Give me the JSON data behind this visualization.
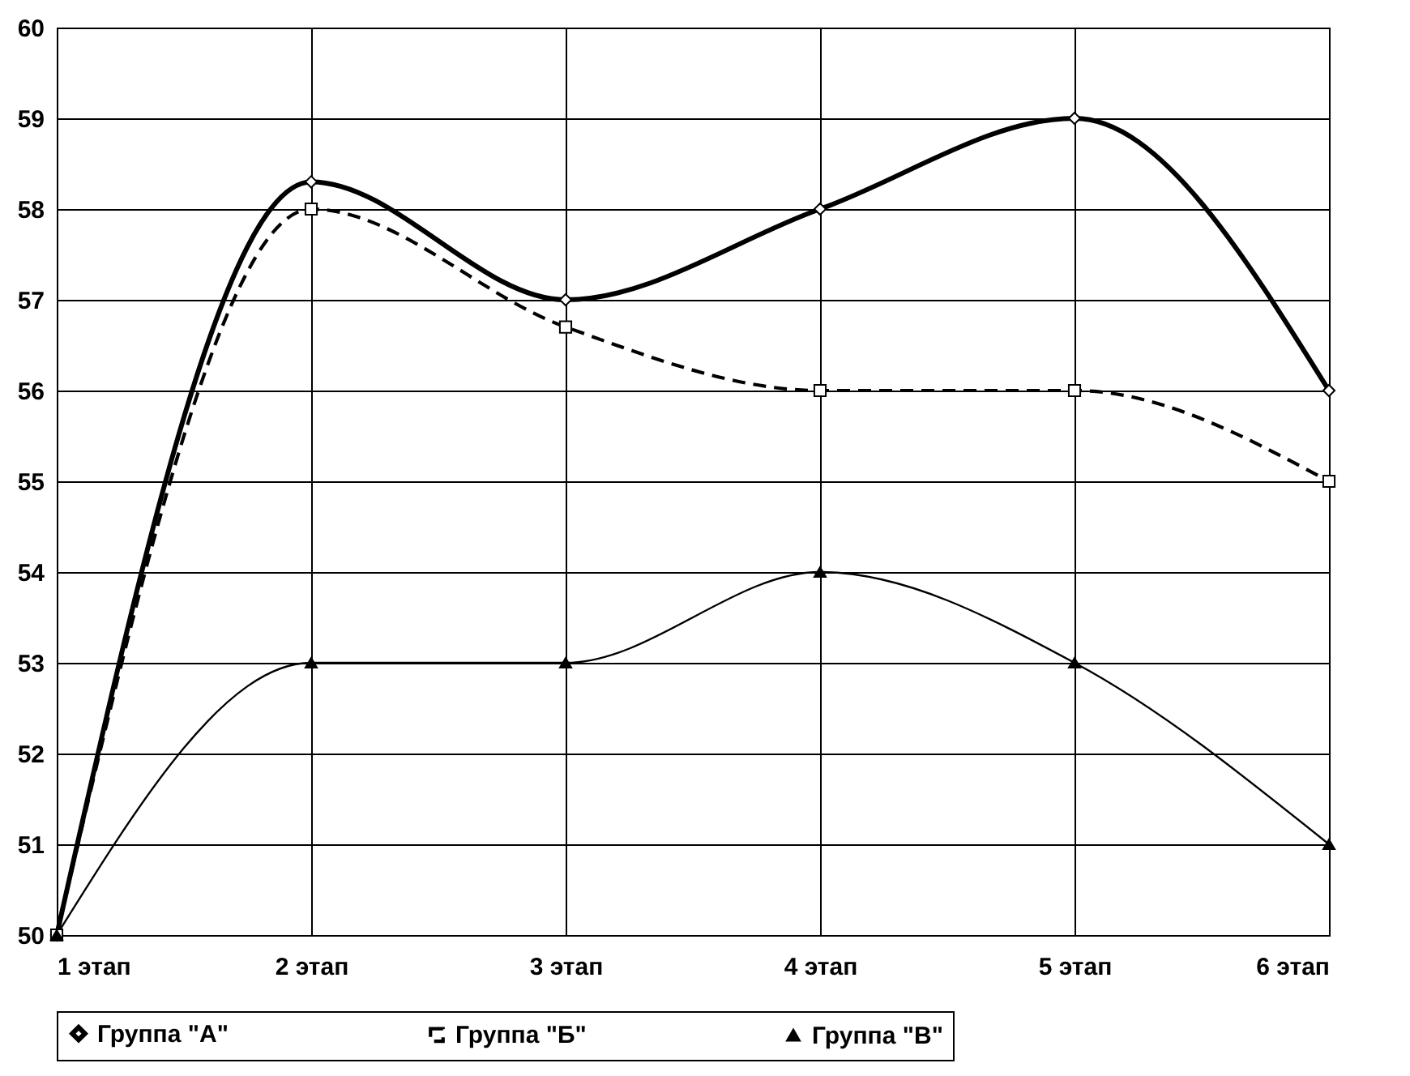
{
  "chart_data": {
    "type": "line",
    "categories": [
      "1 этап",
      "2 этап",
      "3 этап",
      "4 этап",
      "5 этап",
      "6 этап"
    ],
    "series": [
      {
        "name": "Группа \"А\"",
        "color": "#000000",
        "values": [
          50,
          58.3,
          57,
          58,
          59,
          56
        ],
        "marker": "diamond",
        "line_style": "solid"
      },
      {
        "name": "Группа \"Б\"",
        "color": "#000000",
        "values": [
          50,
          58,
          56.7,
          56,
          56,
          55
        ],
        "marker": "square",
        "line_style": "dashed"
      },
      {
        "name": "Группа \"В\"",
        "color": "#000000",
        "values": [
          50,
          53,
          53,
          54,
          53,
          51
        ],
        "marker": "triangle",
        "line_style": "solid"
      }
    ],
    "ylim": [
      50,
      60
    ],
    "yticks": [
      50,
      51,
      52,
      53,
      54,
      55,
      56,
      57,
      58,
      59,
      60
    ],
    "grid": true,
    "legend": "bottom"
  }
}
